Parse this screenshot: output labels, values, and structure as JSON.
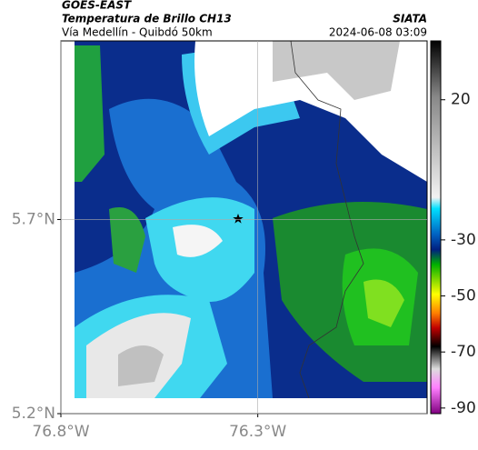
{
  "header": {
    "source": "GOES-EAST",
    "title": "Temperatura de Brillo CH13",
    "subtitle": "Vía Medellín - Quibdó 50km",
    "brand": "SIATA",
    "timestamp": "2024-06-08 03:09"
  },
  "map": {
    "xlim": [
      -76.8,
      -75.87
    ],
    "ylim": [
      5.2,
      6.16
    ],
    "xticks": [
      {
        "value": -76.8,
        "label": "76.8°W"
      },
      {
        "value": -76.3,
        "label": "76.3°W"
      }
    ],
    "yticks": [
      {
        "value": 5.2,
        "label": "5.2°N"
      },
      {
        "value": 5.7,
        "label": "5.7°N"
      }
    ],
    "grid": true
  },
  "colorbar": {
    "lim": [
      -92,
      41
    ],
    "ticks": [
      20,
      -30,
      -50,
      -70,
      -90
    ]
  }
}
